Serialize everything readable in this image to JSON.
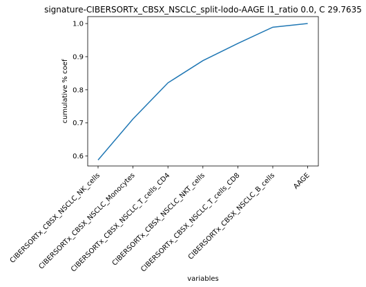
{
  "chart_data": {
    "type": "line",
    "title": "signature-CIBERSORTx_CBSX_NSCLC_split-lodo-AAGE l1_ratio 0.0, C 29.7635",
    "xlabel": "variables",
    "ylabel": "cumulative % coef",
    "categories": [
      "CIBERSORTx_CBSX_NSCLC_NK_cells",
      "CIBERSORTx_CBSX_NSCLC_Monocytes",
      "CIBERSORTx_CBSX_NSCLC_T_cells_CD4",
      "CIBERSORTx_CBSX_NSCLC_NKT_cells",
      "CIBERSORTx_CBSX_NSCLC_T_cells_CD8",
      "CIBERSORTx_CBSX_NSCLC_B_cells",
      "AAGE"
    ],
    "values": [
      0.588,
      0.712,
      0.821,
      0.888,
      0.94,
      0.989,
      1.0
    ],
    "yticks": [
      0.6,
      0.7,
      0.8,
      0.9,
      1.0
    ],
    "ytick_labels": [
      "0.6",
      "0.7",
      "0.8",
      "0.9",
      "1.0"
    ],
    "ylim": [
      0.57,
      1.021
    ],
    "grid": false,
    "line_color": "#1f77b4"
  }
}
